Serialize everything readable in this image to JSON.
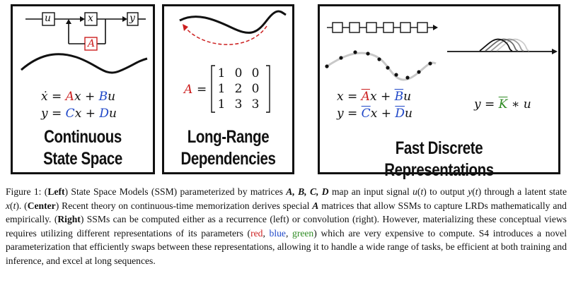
{
  "left_panel": {
    "block_u": "u",
    "block_x": "x",
    "block_y": "y",
    "block_A": "A",
    "title_line1": "Continuous",
    "title_line2": "State Space"
  },
  "center_panel": {
    "matrix_name": "A",
    "matrix_equals": "=",
    "matrix_rows": [
      [
        "1",
        "0",
        "0"
      ],
      [
        "1",
        "2",
        "0"
      ],
      [
        "1",
        "3",
        "3"
      ]
    ],
    "title_line1": "Long-Range",
    "title_line2": "Dependencies"
  },
  "right_panel": {
    "title": "Fast Discrete Representations",
    "conv_y": "y",
    "conv_eq": "=",
    "conv_K": "K",
    "conv_op": "∗",
    "conv_u": "u"
  },
  "colors": {
    "red": "#cc1f1f",
    "blue": "#1f47c8",
    "green": "#2e8b23"
  },
  "caption": {
    "fig_label": "Figure 1:",
    "left_label": "Left",
    "center_label": "Center",
    "right_label": "Right",
    "c1": "State Space Models (SSM) parameterized by matrices",
    "c2": "map an input signal",
    "c3": "to output",
    "c4": "through a latent state",
    "c5": "Recent theory on continuous-time memorization derives special",
    "c6": "matrices that allow SSMs to capture LRDs mathematically and empirically.",
    "c7": "SSMs can be computed either as a recurrence (left) or convolution (right). However, materializing these conceptual views requires utilizing different representations of its parameters (",
    "c_red": "red",
    "c_blue": "blue",
    "c_green": "green",
    "c8": ") which are very expensive to compute. S4 introduces a novel parameterization that efficiently swaps between these representations, allowing it to handle a wide range of tasks, be efficient at both training and inference, and excel at long sequences."
  }
}
